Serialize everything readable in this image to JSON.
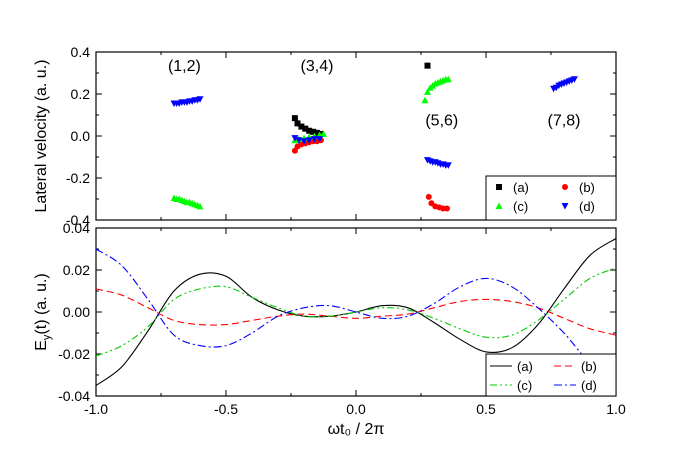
{
  "chart_data": [
    {
      "type": "scatter",
      "panel": "top",
      "ylabel": "Lateral velocity (a. u.)",
      "xlim": [
        -1.0,
        1.0
      ],
      "ylim": [
        -0.4,
        0.4
      ],
      "yticks": [
        -0.4,
        -0.2,
        0.0,
        0.2,
        0.4
      ],
      "ytick_labels": [
        "-0.4",
        "-0.2",
        "0.0",
        "0.2",
        "0.4"
      ],
      "annotations": [
        {
          "text": "(1,2)",
          "x": -0.66,
          "y": 0.31
        },
        {
          "text": "(3,4)",
          "x": -0.15,
          "y": 0.31
        },
        {
          "text": "(5,6)",
          "x": 0.33,
          "y": 0.05
        },
        {
          "text": "(7,8)",
          "x": 0.8,
          "y": 0.05
        }
      ],
      "legend": {
        "position": "bottom-right",
        "columns": 2
      },
      "series": [
        {
          "name": "(a)",
          "marker": "square",
          "color": "#000000",
          "points": [
            [
              -0.235,
              0.085
            ],
            [
              -0.225,
              0.06
            ],
            [
              -0.21,
              0.045
            ],
            [
              -0.195,
              0.035
            ],
            [
              -0.18,
              0.025
            ],
            [
              -0.165,
              0.02
            ],
            [
              -0.15,
              0.015
            ],
            [
              -0.135,
              0.01
            ],
            [
              0.275,
              0.335
            ]
          ]
        },
        {
          "name": "(b)",
          "marker": "circle",
          "color": "#ff0000",
          "points": [
            [
              -0.235,
              -0.07
            ],
            [
              -0.225,
              -0.05
            ],
            [
              -0.21,
              -0.04
            ],
            [
              -0.195,
              -0.035
            ],
            [
              -0.18,
              -0.03
            ],
            [
              -0.165,
              -0.025
            ],
            [
              -0.15,
              -0.025
            ],
            [
              -0.135,
              -0.02
            ],
            [
              0.28,
              -0.29
            ],
            [
              0.29,
              -0.32
            ],
            [
              0.305,
              -0.335
            ],
            [
              0.32,
              -0.34
            ],
            [
              0.335,
              -0.345
            ],
            [
              0.35,
              -0.345
            ]
          ]
        },
        {
          "name": "(c)",
          "marker": "triangle-up",
          "color": "#00ff00",
          "points": [
            [
              -0.7,
              -0.295
            ],
            [
              -0.69,
              -0.3
            ],
            [
              -0.68,
              -0.3
            ],
            [
              -0.67,
              -0.305
            ],
            [
              -0.66,
              -0.31
            ],
            [
              -0.65,
              -0.315
            ],
            [
              -0.64,
              -0.315
            ],
            [
              -0.63,
              -0.32
            ],
            [
              -0.62,
              -0.325
            ],
            [
              -0.61,
              -0.33
            ],
            [
              -0.6,
              -0.335
            ],
            [
              -0.235,
              -0.02
            ],
            [
              -0.22,
              -0.015
            ],
            [
              -0.2,
              -0.01
            ],
            [
              -0.18,
              -0.005
            ],
            [
              -0.16,
              0.0
            ],
            [
              -0.14,
              0.005
            ],
            [
              -0.125,
              0.01
            ],
            [
              0.265,
              0.17
            ],
            [
              0.275,
              0.21
            ],
            [
              0.285,
              0.23
            ],
            [
              0.295,
              0.24
            ],
            [
              0.305,
              0.25
            ],
            [
              0.315,
              0.255
            ],
            [
              0.325,
              0.26
            ],
            [
              0.335,
              0.265
            ],
            [
              0.345,
              0.27
            ],
            [
              0.355,
              0.27
            ]
          ]
        },
        {
          "name": "(d)",
          "marker": "triangle-down",
          "color": "#0000ff",
          "points": [
            [
              -0.7,
              0.155
            ],
            [
              -0.69,
              0.155
            ],
            [
              -0.68,
              0.155
            ],
            [
              -0.67,
              0.16
            ],
            [
              -0.66,
              0.16
            ],
            [
              -0.65,
              0.16
            ],
            [
              -0.64,
              0.165
            ],
            [
              -0.63,
              0.165
            ],
            [
              -0.62,
              0.17
            ],
            [
              -0.61,
              0.17
            ],
            [
              -0.6,
              0.175
            ],
            [
              -0.235,
              -0.01
            ],
            [
              -0.22,
              -0.02
            ],
            [
              -0.2,
              -0.025
            ],
            [
              -0.18,
              -0.02
            ],
            [
              -0.16,
              -0.015
            ],
            [
              -0.14,
              -0.015
            ],
            [
              0.275,
              -0.115
            ],
            [
              0.285,
              -0.12
            ],
            [
              0.295,
              -0.125
            ],
            [
              0.305,
              -0.125
            ],
            [
              0.315,
              -0.13
            ],
            [
              0.325,
              -0.135
            ],
            [
              0.335,
              -0.135
            ],
            [
              0.345,
              -0.14
            ],
            [
              0.355,
              -0.14
            ],
            [
              0.76,
              0.225
            ],
            [
              0.77,
              0.23
            ],
            [
              0.78,
              0.24
            ],
            [
              0.79,
              0.245
            ],
            [
              0.8,
              0.25
            ],
            [
              0.81,
              0.255
            ],
            [
              0.82,
              0.26
            ],
            [
              0.83,
              0.265
            ],
            [
              0.84,
              0.27
            ]
          ]
        }
      ]
    },
    {
      "type": "line",
      "panel": "bottom",
      "xlabel": "ωt₀ / 2π",
      "ylabel": "E_y(t) (a. u.)",
      "xlim": [
        -1.0,
        1.0
      ],
      "ylim": [
        -0.04,
        0.04
      ],
      "xticks": [
        -1.0,
        -0.5,
        0.0,
        0.5,
        1.0
      ],
      "xtick_labels": [
        "-1.0",
        "-0.5",
        "0.0",
        "0.5",
        "1.0"
      ],
      "yticks": [
        -0.04,
        -0.02,
        0.0,
        0.02,
        0.04
      ],
      "ytick_labels": [
        "-0.04",
        "-0.02",
        "0.00",
        "0.02",
        "0.04"
      ],
      "legend": {
        "position": "bottom-right",
        "columns": 2
      },
      "x": [
        -1.0,
        -0.9,
        -0.8,
        -0.7,
        -0.6,
        -0.5,
        -0.4,
        -0.3,
        -0.2,
        -0.1,
        0.0,
        0.1,
        0.2,
        0.3,
        0.4,
        0.5,
        0.6,
        0.7,
        0.8,
        0.9,
        1.0
      ],
      "series": [
        {
          "name": "(a)",
          "color": "#000000",
          "dash": "solid",
          "values": [
            -0.035,
            -0.026,
            -0.009,
            0.01,
            0.018,
            0.017,
            0.007,
            0.001,
            -0.002,
            -0.002,
            0.0,
            0.003,
            0.002,
            -0.005,
            -0.013,
            -0.019,
            -0.017,
            -0.006,
            0.011,
            0.027,
            0.035
          ]
        },
        {
          "name": "(b)",
          "color": "#ff0000",
          "dash": "dashed",
          "values": [
            0.011,
            0.008,
            0.002,
            -0.004,
            -0.006,
            -0.006,
            -0.004,
            -0.002,
            -0.001,
            -0.002,
            -0.003,
            -0.002,
            -0.001,
            0.002,
            0.005,
            0.006,
            0.005,
            0.002,
            -0.003,
            -0.008,
            -0.011
          ]
        },
        {
          "name": "(c)",
          "color": "#00cc00",
          "dash": "dash-dot-dot",
          "values": [
            -0.021,
            -0.016,
            -0.007,
            0.006,
            0.011,
            0.012,
            0.007,
            0.002,
            -0.002,
            -0.002,
            0.0,
            0.002,
            0.001,
            -0.003,
            -0.008,
            -0.012,
            -0.011,
            -0.004,
            0.006,
            0.016,
            0.021
          ]
        },
        {
          "name": "(d)",
          "color": "#0000ff",
          "dash": "dash-dot",
          "values": [
            0.03,
            0.022,
            0.006,
            -0.011,
            -0.016,
            -0.016,
            -0.01,
            -0.002,
            0.002,
            0.003,
            0.0,
            -0.003,
            -0.002,
            0.004,
            0.012,
            0.016,
            0.012,
            0.002,
            -0.01,
            -0.024,
            -0.03
          ]
        }
      ]
    }
  ]
}
